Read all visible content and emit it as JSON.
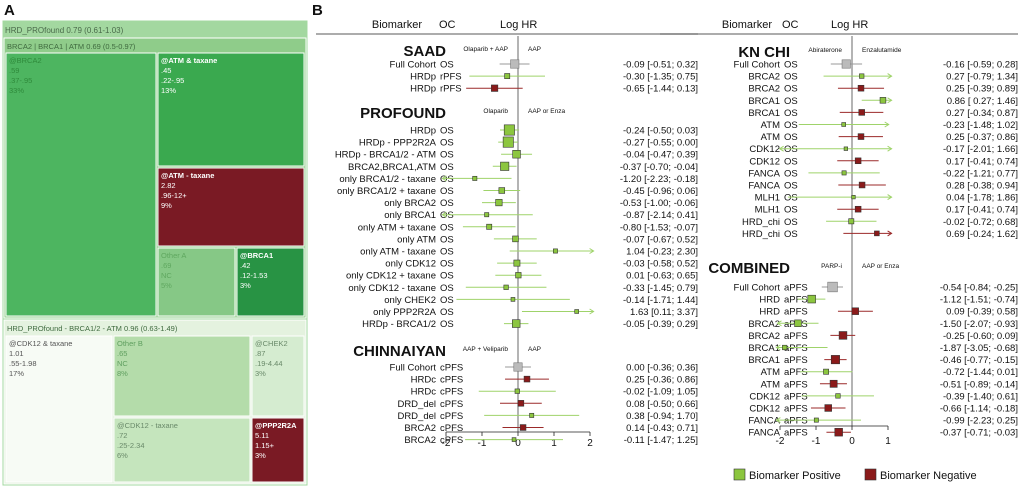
{
  "panel_labels": {
    "a": "A",
    "b": "B"
  },
  "treemap": {
    "title": "HRD_PROfound 0.79 (0.61-1.03)",
    "groups": [
      {
        "header": "BRCA2 | BRCA1 | ATM 0.69 (0.5-0.97)",
        "cells": [
          {
            "name": "@BRCA2",
            "hr": ".59",
            "ci": ".37-.95",
            "pct": "33%",
            "color": "#4db560",
            "text_color": "#2f8a3b"
          },
          {
            "name": "@ATM & taxane",
            "hr": ".45",
            "ci": ".22-.95",
            "pct": "13%",
            "color": "#3aa94f",
            "text_color": "#ffffff"
          },
          {
            "name": "@ATM - taxane",
            "hr": "2.82",
            "ci": ".96-12+",
            "pct": "9%",
            "color": "#7a1a24",
            "text_color": "#ffffff"
          },
          {
            "name": "Other A",
            "hr": ".69",
            "ci": "NC",
            "pct": "5%",
            "color": "#86c886",
            "text_color": "#5fa75f"
          },
          {
            "name": "@BRCA1",
            "hr": ".42",
            "ci": ".12-1.53",
            "pct": "3%",
            "color": "#289344",
            "text_color": "#ffffff"
          }
        ]
      },
      {
        "header": "HRD_PROfound - BRCA1/2 - ATM 0.96 (0.63-1.49)",
        "cells": [
          {
            "name": "@CDK12 & taxane",
            "hr": "1.01",
            "ci": ".55-1.98",
            "pct": "17%",
            "color": "#f7fbf5",
            "text_color": "#555555"
          },
          {
            "name": "Other B",
            "hr": ".65",
            "ci": "NC",
            "pct": "8%",
            "color": "#b4dcaa",
            "text_color": "#5f9f5f"
          },
          {
            "name": "@CHEK2",
            "hr": ".87",
            "ci": ".19-4.44",
            "pct": "3%",
            "color": "#d5ecd0",
            "text_color": "#6a8a6a"
          },
          {
            "name": "@CDK12 - taxane",
            "hr": ".72",
            "ci": ".25-2.34",
            "pct": "6%",
            "color": "#c5e5bd",
            "text_color": "#6a8a6a"
          },
          {
            "name": "@PPP2R2A",
            "hr": "5.11",
            "ci": "1.15+",
            "pct": "3%",
            "color": "#7a1a24",
            "text_color": "#ffffff"
          }
        ]
      }
    ]
  },
  "forest": {
    "headers": {
      "biomarker": "Biomarker",
      "oc": "OC",
      "loghr": "Log HR"
    },
    "legend": {
      "positive": "Biomarker Positive",
      "negative": "Biomarker Negative"
    },
    "colors": {
      "positive": "#8cc63f",
      "negative": "#8b1a1a",
      "neutral": "#bbbbbb",
      "ci_positive": "#9fd36a",
      "ci_negative": "#9b2a2a",
      "ci_neutral": "#999999"
    }
  },
  "chart_data": [
    {
      "type": "forest",
      "panel": "left",
      "xlabel": "",
      "xlim": [
        -2,
        2
      ],
      "ticks": [
        -2,
        -1,
        0,
        1,
        2
      ],
      "sections": [
        {
          "title": "SAAD",
          "left_label": "Olaparib + AAP",
          "right_label": "AAP",
          "rows": [
            {
              "label": "Full Cohort",
              "oc": "OS",
              "hr": -0.09,
              "lo": -0.51,
              "hi": 0.32,
              "text": "-0.09 [-0.51; 0.32]",
              "kind": "neutral",
              "size": 2
            },
            {
              "label": "HRDp",
              "oc": "rPFS",
              "hr": -0.3,
              "lo": -1.35,
              "hi": 0.75,
              "text": "-0.30 [-1.35; 0.75]",
              "kind": "positive",
              "size": 1
            },
            {
              "label": "HRDp",
              "oc": "rPFS",
              "hr": -0.65,
              "lo": -1.44,
              "hi": 0.13,
              "text": "-0.65 [-1.44; 0.13]",
              "kind": "negative",
              "size": 1.4
            }
          ]
        },
        {
          "title": "PROFOUND",
          "left_label": "Olaparib",
          "right_label": "AAP or Enza",
          "rows": [
            {
              "label": "HRDp",
              "oc": "OS",
              "hr": -0.24,
              "lo": -0.5,
              "hi": 0.03,
              "text": "-0.24 [-0.50; 0.03]",
              "kind": "positive",
              "size": 2.6
            },
            {
              "label": "HRDp - PPP2R2A",
              "oc": "OS",
              "hr": -0.27,
              "lo": -0.55,
              "hi": 0.0,
              "text": "-0.27 [-0.55; 0.00]",
              "kind": "positive",
              "size": 2.6
            },
            {
              "label": "HRDp - BRCA1/2 - ATM",
              "oc": "OS",
              "hr": -0.04,
              "lo": -0.47,
              "hi": 0.39,
              "text": "-0.04 [-0.47; 0.39]",
              "kind": "positive",
              "size": 1.8
            },
            {
              "label": "BRCA2,BRCA1,ATM",
              "oc": "OS",
              "hr": -0.37,
              "lo": -0.7,
              "hi": -0.04,
              "text": "-0.37 [-0.70; -0.04]",
              "kind": "positive",
              "size": 2
            },
            {
              "label": "only BRCA1/2 - taxane",
              "oc": "OS",
              "hr": -1.2,
              "lo": -2.23,
              "hi": -0.18,
              "text": "-1.20 [-2.23; -0.18]",
              "kind": "positive",
              "size": 0.7
            },
            {
              "label": "only BRCA1/2 + taxane",
              "oc": "OS",
              "hr": -0.45,
              "lo": -0.96,
              "hi": 0.06,
              "text": "-0.45 [-0.96; 0.06]",
              "kind": "positive",
              "size": 1.2
            },
            {
              "label": "only BRCA2",
              "oc": "OS",
              "hr": -0.53,
              "lo": -1.0,
              "hi": -0.06,
              "text": "-0.53 [-1.00; -0.06]",
              "kind": "positive",
              "size": 1.4
            },
            {
              "label": "only BRCA1",
              "oc": "OS",
              "hr": -0.87,
              "lo": -2.14,
              "hi": 0.41,
              "text": "-0.87 [-2.14; 0.41]",
              "kind": "positive",
              "size": 0.7
            },
            {
              "label": "only ATM + taxane",
              "oc": "OS",
              "hr": -0.8,
              "lo": -1.53,
              "hi": -0.07,
              "text": "-0.80 [-1.53; -0.07]",
              "kind": "positive",
              "size": 1
            },
            {
              "label": "only ATM",
              "oc": "OS",
              "hr": -0.07,
              "lo": -0.67,
              "hi": 0.52,
              "text": "-0.07 [-0.67; 0.52]",
              "kind": "positive",
              "size": 1.2
            },
            {
              "label": "only ATM - taxane",
              "oc": "OS",
              "hr": 1.04,
              "lo": -0.23,
              "hi": 2.3,
              "text": "1.04 [-0.23; 2.30]",
              "kind": "positive",
              "size": 0.7
            },
            {
              "label": "only CDK12",
              "oc": "OS",
              "hr": -0.03,
              "lo": -0.58,
              "hi": 0.52,
              "text": "-0.03 [-0.58; 0.52]",
              "kind": "positive",
              "size": 1.3
            },
            {
              "label": "only CDK12 + taxane",
              "oc": "OS",
              "hr": 0.01,
              "lo": -0.63,
              "hi": 0.65,
              "text": "0.01 [-0.63; 0.65]",
              "kind": "positive",
              "size": 1.1
            },
            {
              "label": "only CDK12 - taxane",
              "oc": "OS",
              "hr": -0.33,
              "lo": -1.45,
              "hi": 0.79,
              "text": "-0.33 [-1.45; 0.79]",
              "kind": "positive",
              "size": 0.8
            },
            {
              "label": "only CHEK2",
              "oc": "OS",
              "hr": -0.14,
              "lo": -1.71,
              "hi": 1.44,
              "text": "-0.14 [-1.71; 1.44]",
              "kind": "positive",
              "size": 0.6
            },
            {
              "label": "only PPP2R2A",
              "oc": "OS",
              "hr": 1.63,
              "lo": 0.11,
              "hi": 3.37,
              "text": "1.63 [0.11; 3.37]",
              "kind": "positive",
              "size": 0.6
            },
            {
              "label": "HRDp - BRCA1/2",
              "oc": "OS",
              "hr": -0.05,
              "lo": -0.39,
              "hi": 0.29,
              "text": "-0.05 [-0.39; 0.29]",
              "kind": "positive",
              "size": 1.8
            }
          ]
        },
        {
          "title": "CHINNAIYAN",
          "left_label": "AAP + Veliparib",
          "right_label": "AAP",
          "rows": [
            {
              "label": "Full Cohort",
              "oc": "cPFS",
              "hr": 0.0,
              "lo": -0.36,
              "hi": 0.36,
              "text": "0.00 [-0.36; 0.36]",
              "kind": "neutral",
              "size": 2
            },
            {
              "label": "HRDc",
              "oc": "cPFS",
              "hr": 0.25,
              "lo": -0.36,
              "hi": 0.86,
              "text": "0.25 [-0.36; 0.86]",
              "kind": "negative",
              "size": 1.2
            },
            {
              "label": "HRDc",
              "oc": "cPFS",
              "hr": -0.02,
              "lo": -1.09,
              "hi": 1.05,
              "text": "-0.02 [-1.09; 1.05]",
              "kind": "positive",
              "size": 0.8
            },
            {
              "label": "DRD_del",
              "oc": "cPFS",
              "hr": 0.08,
              "lo": -0.5,
              "hi": 0.66,
              "text": "0.08 [-0.50; 0.66]",
              "kind": "negative",
              "size": 1.2
            },
            {
              "label": "DRD_del",
              "oc": "cPFS",
              "hr": 0.38,
              "lo": -0.94,
              "hi": 1.7,
              "text": "0.38 [-0.94; 1.70]",
              "kind": "positive",
              "size": 0.7
            },
            {
              "label": "BRCA2",
              "oc": "cPFS",
              "hr": 0.14,
              "lo": -0.43,
              "hi": 0.71,
              "text": "0.14 [-0.43; 0.71]",
              "kind": "negative",
              "size": 1.2
            },
            {
              "label": "BRCA2",
              "oc": "cPFS",
              "hr": -0.11,
              "lo": -1.47,
              "hi": 1.25,
              "text": "-0.11 [-1.47; 1.25]",
              "kind": "positive",
              "size": 0.6
            }
          ]
        }
      ]
    },
    {
      "type": "forest",
      "panel": "right",
      "xlabel": "",
      "xlim": [
        -2,
        1
      ],
      "ticks": [
        -2,
        -1,
        0,
        1
      ],
      "sections": [
        {
          "title": "KN CHI",
          "left_label": "Abiraterone",
          "right_label": "Enzalutamide",
          "rows": [
            {
              "label": "Full Cohort",
              "oc": "OS",
              "hr": -0.16,
              "lo": -0.59,
              "hi": 0.28,
              "text": "-0.16 [-0.59; 0.28]",
              "kind": "neutral",
              "size": 2
            },
            {
              "label": "BRCA2",
              "oc": "OS",
              "hr": 0.27,
              "lo": -0.79,
              "hi": 1.34,
              "text": "0.27 [-0.79; 1.34]",
              "kind": "positive",
              "size": 0.8
            },
            {
              "label": "BRCA2",
              "oc": "OS",
              "hr": 0.25,
              "lo": -0.39,
              "hi": 0.89,
              "text": "0.25 [-0.39; 0.89]",
              "kind": "negative",
              "size": 1.2
            },
            {
              "label": "BRCA1",
              "oc": "OS",
              "hr": 0.86,
              "lo": 0.27,
              "hi": 1.46,
              "text": "0.86 [ 0.27; 1.46]",
              "kind": "positive",
              "size": 1.2
            },
            {
              "label": "BRCA1",
              "oc": "OS",
              "hr": 0.27,
              "lo": -0.34,
              "hi": 0.87,
              "text": "0.27 [-0.34; 0.87]",
              "kind": "negative",
              "size": 1.2
            },
            {
              "label": "ATM",
              "oc": "OS",
              "hr": -0.23,
              "lo": -1.48,
              "hi": 1.02,
              "text": "-0.23 [-1.48; 1.02]",
              "kind": "positive",
              "size": 0.6
            },
            {
              "label": "ATM",
              "oc": "OS",
              "hr": 0.25,
              "lo": -0.37,
              "hi": 0.86,
              "text": "0.25 [-0.37; 0.86]",
              "kind": "negative",
              "size": 1.2
            },
            {
              "label": "CDK12",
              "oc": "OS",
              "hr": -0.17,
              "lo": -2.01,
              "hi": 1.66,
              "text": "-0.17 [-2.01; 1.66]",
              "kind": "positive",
              "size": 0.5
            },
            {
              "label": "CDK12",
              "oc": "OS",
              "hr": 0.17,
              "lo": -0.41,
              "hi": 0.74,
              "text": "0.17 [-0.41; 0.74]",
              "kind": "negative",
              "size": 1.2
            },
            {
              "label": "FANCA",
              "oc": "OS",
              "hr": -0.22,
              "lo": -1.21,
              "hi": 0.77,
              "text": "-0.22 [-1.21; 0.77]",
              "kind": "positive",
              "size": 0.7
            },
            {
              "label": "FANCA",
              "oc": "OS",
              "hr": 0.28,
              "lo": -0.38,
              "hi": 0.94,
              "text": "0.28 [-0.38; 0.94]",
              "kind": "negative",
              "size": 1.2
            },
            {
              "label": "MLH1",
              "oc": "OS",
              "hr": 0.04,
              "lo": -1.78,
              "hi": 1.86,
              "text": "0.04 [-1.78; 1.86]",
              "kind": "positive",
              "size": 0.5
            },
            {
              "label": "MLH1",
              "oc": "OS",
              "hr": 0.17,
              "lo": -0.41,
              "hi": 0.74,
              "text": "0.17 [-0.41; 0.74]",
              "kind": "negative",
              "size": 1.2
            },
            {
              "label": "HRD_chi",
              "oc": "OS",
              "hr": -0.02,
              "lo": -0.72,
              "hi": 0.68,
              "text": "-0.02 [-0.72; 0.68]",
              "kind": "positive",
              "size": 1
            },
            {
              "label": "HRD_chi",
              "oc": "OS",
              "hr": 0.69,
              "lo": -0.24,
              "hi": 1.62,
              "text": "0.69 [-0.24; 1.62]",
              "kind": "negative",
              "size": 0.9
            }
          ]
        },
        {
          "title": "COMBINED",
          "left_label": "PARP-i",
          "right_label": "AAP or Enza",
          "rows": [
            {
              "label": "Full Cohort",
              "oc": "aPFS",
              "hr": -0.54,
              "lo": -0.84,
              "hi": -0.25,
              "text": "-0.54 [-0.84; -0.25]",
              "kind": "neutral",
              "size": 2.4
            },
            {
              "label": "HRD",
              "oc": "aPFS",
              "hr": -1.12,
              "lo": -1.51,
              "hi": -0.74,
              "text": "-1.12 [-1.51; -0.74]",
              "kind": "positive",
              "size": 1.8
            },
            {
              "label": "HRD",
              "oc": "aPFS",
              "hr": 0.09,
              "lo": -0.39,
              "hi": 0.58,
              "text": "0.09 [-0.39; 0.58]",
              "kind": "negative",
              "size": 1.5
            },
            {
              "label": "BRCA2",
              "oc": "aPFS",
              "hr": -1.5,
              "lo": -2.07,
              "hi": -0.93,
              "text": "-1.50 [-2.07; -0.93]",
              "kind": "positive",
              "size": 1.5
            },
            {
              "label": "BRCA2",
              "oc": "aPFS",
              "hr": -0.25,
              "lo": -0.6,
              "hi": 0.09,
              "text": "-0.25 [-0.60; 0.09]",
              "kind": "negative",
              "size": 1.8
            },
            {
              "label": "BRCA1",
              "oc": "aPFS",
              "hr": -1.87,
              "lo": -3.05,
              "hi": -0.68,
              "text": "-1.87 [-3.05; -0.68]",
              "kind": "positive",
              "size": 0.8
            },
            {
              "label": "BRCA1",
              "oc": "aPFS",
              "hr": -0.46,
              "lo": -0.77,
              "hi": -0.15,
              "text": "-0.46 [-0.77; -0.15]",
              "kind": "negative",
              "size": 2
            },
            {
              "label": "ATM",
              "oc": "aPFS",
              "hr": -0.72,
              "lo": -1.44,
              "hi": 0.01,
              "text": "-0.72 [-1.44; 0.01]",
              "kind": "positive",
              "size": 1
            },
            {
              "label": "ATM",
              "oc": "aPFS",
              "hr": -0.51,
              "lo": -0.89,
              "hi": -0.14,
              "text": "-0.51 [-0.89; -0.14]",
              "kind": "negative",
              "size": 1.6
            },
            {
              "label": "CDK12",
              "oc": "aPFS",
              "hr": -0.39,
              "lo": -1.4,
              "hi": 0.61,
              "text": "-0.39 [-1.40; 0.61]",
              "kind": "positive",
              "size": 0.8
            },
            {
              "label": "CDK12",
              "oc": "aPFS",
              "hr": -0.66,
              "lo": -1.14,
              "hi": -0.18,
              "text": "-0.66 [-1.14; -0.18]",
              "kind": "negative",
              "size": 1.5
            },
            {
              "label": "FANCA",
              "oc": "aPFS",
              "hr": -0.99,
              "lo": -2.23,
              "hi": 0.25,
              "text": "-0.99 [-2.23; 0.25]",
              "kind": "positive",
              "size": 0.7
            },
            {
              "label": "FANCA",
              "oc": "aPFS",
              "hr": -0.37,
              "lo": -0.71,
              "hi": -0.03,
              "text": "-0.37 [-0.71; -0.03]",
              "kind": "negative",
              "size": 1.8
            }
          ]
        }
      ]
    }
  ]
}
